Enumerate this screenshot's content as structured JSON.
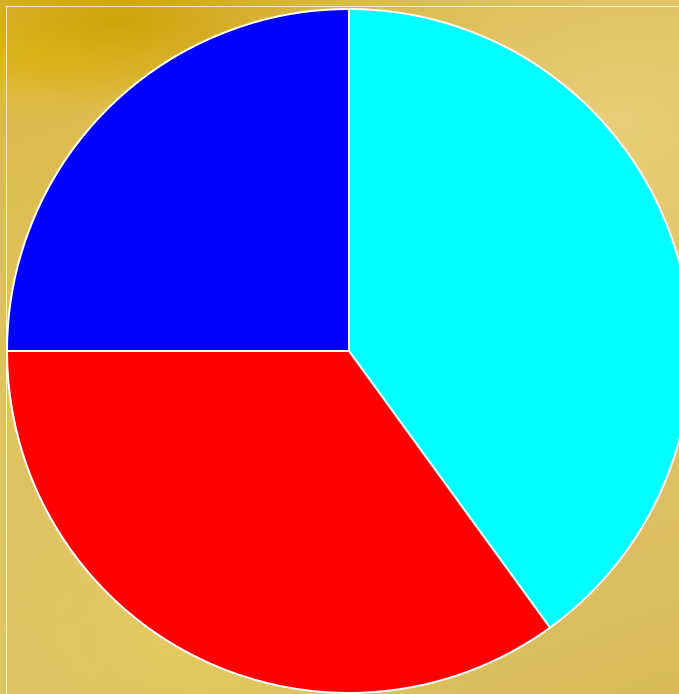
{
  "chart_data": {
    "type": "pie",
    "title": "",
    "start_angle_deg": 0,
    "direction": "clockwise",
    "slices": [
      {
        "value": 40,
        "color": "#00ffff"
      },
      {
        "value": 35,
        "color": "#ff0000"
      },
      {
        "value": 25,
        "color": "#0000ff"
      }
    ],
    "edge_color": "#ffffff"
  }
}
